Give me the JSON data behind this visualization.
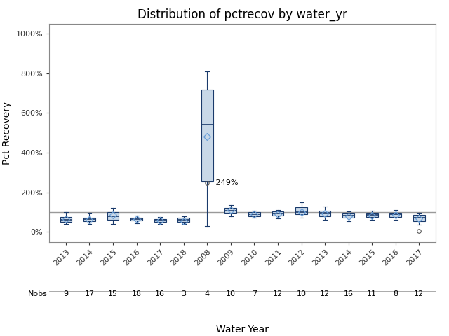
{
  "title": "Distribution of pctrecov by water_yr",
  "xlabel": "Water Year",
  "ylabel": "Pct Recovery",
  "background_color": "#ffffff",
  "plot_bg_color": "#ffffff",
  "ylim": [
    -50,
    1050
  ],
  "yticks": [
    0,
    200,
    400,
    600,
    800,
    1000
  ],
  "ytick_labels": [
    "0%",
    "200%",
    "400%",
    "600%",
    "800%",
    "1000%"
  ],
  "reference_line": 100,
  "categories": [
    "2013",
    "2014",
    "2015",
    "2016",
    "2017",
    "2018",
    "2008",
    "2009",
    "2010",
    "2011",
    "2012",
    "2013",
    "2014",
    "2015",
    "2016",
    "2017"
  ],
  "nobs": [
    9,
    17,
    15,
    18,
    16,
    3,
    4,
    10,
    7,
    12,
    10,
    12,
    16,
    11,
    8,
    12
  ],
  "box_data": [
    {
      "q1": 50,
      "median": 60,
      "q3": 75,
      "whisker_low": 40,
      "whisker_high": 100,
      "mean": 65,
      "outliers": []
    },
    {
      "q1": 55,
      "median": 65,
      "q3": 72,
      "whisker_low": 42,
      "whisker_high": 95,
      "mean": 63,
      "outliers": []
    },
    {
      "q1": 62,
      "median": 78,
      "q3": 100,
      "whisker_low": 42,
      "whisker_high": 120,
      "mean": 85,
      "outliers": []
    },
    {
      "q1": 57,
      "median": 65,
      "q3": 73,
      "whisker_low": 45,
      "whisker_high": 83,
      "mean": 65,
      "outliers": []
    },
    {
      "q1": 52,
      "median": 58,
      "q3": 65,
      "whisker_low": 40,
      "whisker_high": 75,
      "mean": 58,
      "outliers": []
    },
    {
      "q1": 50,
      "median": 60,
      "q3": 73,
      "whisker_low": 42,
      "whisker_high": 80,
      "mean": 55,
      "outliers": []
    },
    {
      "q1": 255,
      "median": 540,
      "q3": 718,
      "whisker_low": 30,
      "whisker_high": 808,
      "mean": 480,
      "outliers": [
        249
      ]
    },
    {
      "q1": 95,
      "median": 108,
      "q3": 120,
      "whisker_low": 80,
      "whisker_high": 135,
      "mean": 110,
      "outliers": []
    },
    {
      "q1": 80,
      "median": 90,
      "q3": 100,
      "whisker_low": 72,
      "whisker_high": 108,
      "mean": 88,
      "outliers": []
    },
    {
      "q1": 83,
      "median": 92,
      "q3": 102,
      "whisker_low": 70,
      "whisker_high": 112,
      "mean": 90,
      "outliers": []
    },
    {
      "q1": 88,
      "median": 100,
      "q3": 125,
      "whisker_low": 72,
      "whisker_high": 148,
      "mean": 100,
      "outliers": []
    },
    {
      "q1": 78,
      "median": 95,
      "q3": 108,
      "whisker_low": 62,
      "whisker_high": 130,
      "mean": 92,
      "outliers": []
    },
    {
      "q1": 72,
      "median": 82,
      "q3": 95,
      "whisker_low": 55,
      "whisker_high": 105,
      "mean": 80,
      "outliers": []
    },
    {
      "q1": 75,
      "median": 85,
      "q3": 95,
      "whisker_low": 60,
      "whisker_high": 108,
      "mean": 83,
      "outliers": []
    },
    {
      "q1": 77,
      "median": 88,
      "q3": 98,
      "whisker_low": 60,
      "whisker_high": 110,
      "mean": 85,
      "outliers": []
    },
    {
      "q1": 55,
      "median": 72,
      "q3": 85,
      "whisker_low": 38,
      "whisker_high": 95,
      "mean": 68,
      "outliers": [
        5
      ]
    }
  ],
  "box_color": "#c8d8e8",
  "box_edge_color": "#1a3a6b",
  "whisker_color": "#1a3a6b",
  "median_color": "#1a3a6b",
  "mean_marker_color": "#6a9fd8",
  "outlier_color": "#555555",
  "ref_line_color": "#999999",
  "title_fontsize": 12,
  "axis_label_fontsize": 10,
  "tick_fontsize": 8,
  "nobs_fontsize": 8
}
